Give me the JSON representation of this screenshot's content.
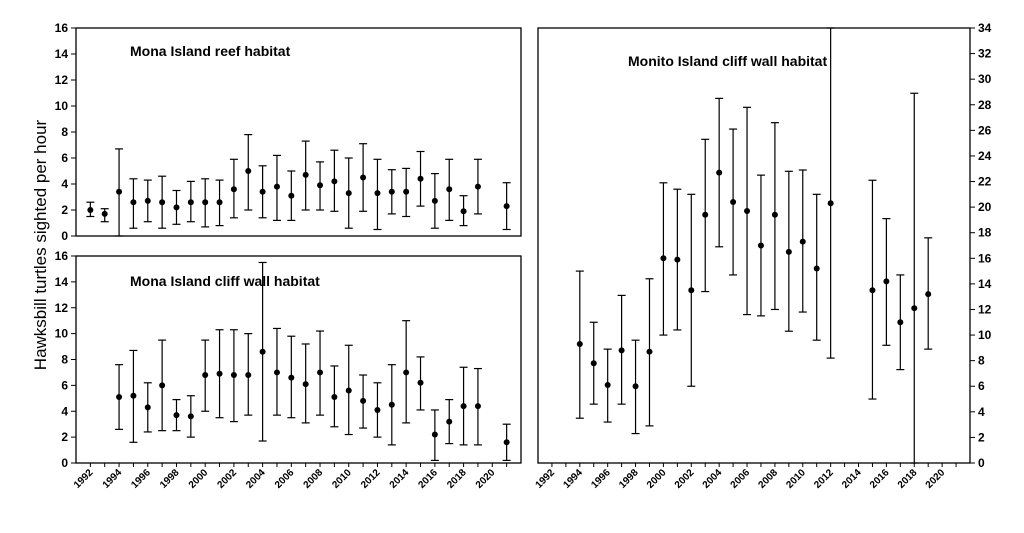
{
  "ylabel": "Hawksbill turtles sighted per hour",
  "chart_data": [
    {
      "type": "scatter",
      "title": "Mona Island  reef habitat",
      "xlim": [
        1991,
        2022
      ],
      "ylim": [
        0,
        16
      ],
      "yticks": [
        0,
        2,
        4,
        6,
        8,
        10,
        12,
        14,
        16
      ],
      "points": [
        {
          "x": 1992,
          "y": 2.0,
          "lo": 1.5,
          "hi": 2.6
        },
        {
          "x": 1993,
          "y": 1.7,
          "lo": 1.1,
          "hi": 2.1
        },
        {
          "x": 1994,
          "y": 3.4,
          "lo": 0.0,
          "hi": 6.7
        },
        {
          "x": 1995,
          "y": 2.6,
          "lo": 0.6,
          "hi": 4.4
        },
        {
          "x": 1996,
          "y": 2.7,
          "lo": 1.1,
          "hi": 4.3
        },
        {
          "x": 1997,
          "y": 2.6,
          "lo": 0.6,
          "hi": 4.6
        },
        {
          "x": 1998,
          "y": 2.2,
          "lo": 0.9,
          "hi": 3.5
        },
        {
          "x": 1999,
          "y": 2.6,
          "lo": 1.1,
          "hi": 4.2
        },
        {
          "x": 2000,
          "y": 2.6,
          "lo": 0.7,
          "hi": 4.4
        },
        {
          "x": 2001,
          "y": 2.6,
          "lo": 0.8,
          "hi": 4.3
        },
        {
          "x": 2002,
          "y": 3.6,
          "lo": 1.4,
          "hi": 5.9
        },
        {
          "x": 2003,
          "y": 5.0,
          "lo": 2.0,
          "hi": 7.8
        },
        {
          "x": 2004,
          "y": 3.4,
          "lo": 1.4,
          "hi": 5.4
        },
        {
          "x": 2005,
          "y": 3.8,
          "lo": 1.2,
          "hi": 6.2
        },
        {
          "x": 2006,
          "y": 3.1,
          "lo": 1.2,
          "hi": 5.0
        },
        {
          "x": 2007,
          "y": 4.7,
          "lo": 2.0,
          "hi": 7.3
        },
        {
          "x": 2008,
          "y": 3.9,
          "lo": 2.0,
          "hi": 5.7
        },
        {
          "x": 2009,
          "y": 4.2,
          "lo": 1.9,
          "hi": 6.6
        },
        {
          "x": 2010,
          "y": 3.3,
          "lo": 0.6,
          "hi": 6.0
        },
        {
          "x": 2011,
          "y": 4.5,
          "lo": 1.9,
          "hi": 7.1
        },
        {
          "x": 2012,
          "y": 3.3,
          "lo": 0.5,
          "hi": 5.9
        },
        {
          "x": 2013,
          "y": 3.4,
          "lo": 1.7,
          "hi": 5.1
        },
        {
          "x": 2014,
          "y": 3.4,
          "lo": 1.5,
          "hi": 5.2
        },
        {
          "x": 2015,
          "y": 4.4,
          "lo": 2.3,
          "hi": 6.5
        },
        {
          "x": 2016,
          "y": 2.7,
          "lo": 0.6,
          "hi": 4.8
        },
        {
          "x": 2017,
          "y": 3.6,
          "lo": 1.2,
          "hi": 5.9
        },
        {
          "x": 2018,
          "y": 1.9,
          "lo": 0.8,
          "hi": 3.1
        },
        {
          "x": 2019,
          "y": 3.8,
          "lo": 1.7,
          "hi": 5.9
        },
        {
          "x": 2021,
          "y": 2.3,
          "lo": 0.5,
          "hi": 4.1
        }
      ]
    },
    {
      "type": "scatter",
      "title": "Mona Island  cliff wall habitat",
      "xlim": [
        1991,
        2022
      ],
      "ylim": [
        0,
        16
      ],
      "yticks": [
        0,
        2,
        4,
        6,
        8,
        10,
        12,
        14,
        16
      ],
      "xticks": [
        1992,
        1994,
        1996,
        1998,
        2000,
        2002,
        2004,
        2006,
        2008,
        2010,
        2012,
        2014,
        2016,
        2018,
        2020
      ],
      "points": [
        {
          "x": 1994,
          "y": 5.1,
          "lo": 2.6,
          "hi": 7.6
        },
        {
          "x": 1995,
          "y": 5.2,
          "lo": 1.6,
          "hi": 8.7
        },
        {
          "x": 1996,
          "y": 4.3,
          "lo": 2.4,
          "hi": 6.2
        },
        {
          "x": 1997,
          "y": 6.0,
          "lo": 2.5,
          "hi": 9.5
        },
        {
          "x": 1998,
          "y": 3.7,
          "lo": 2.5,
          "hi": 4.9
        },
        {
          "x": 1999,
          "y": 3.6,
          "lo": 2.0,
          "hi": 5.2
        },
        {
          "x": 2000,
          "y": 6.8,
          "lo": 4.0,
          "hi": 9.5
        },
        {
          "x": 2001,
          "y": 6.9,
          "lo": 3.5,
          "hi": 10.3
        },
        {
          "x": 2002,
          "y": 6.8,
          "lo": 3.2,
          "hi": 10.3
        },
        {
          "x": 2003,
          "y": 6.8,
          "lo": 3.7,
          "hi": 10.0
        },
        {
          "x": 2004,
          "y": 8.6,
          "lo": 1.7,
          "hi": 15.5
        },
        {
          "x": 2005,
          "y": 7.0,
          "lo": 3.7,
          "hi": 10.4
        },
        {
          "x": 2006,
          "y": 6.6,
          "lo": 3.5,
          "hi": 9.8
        },
        {
          "x": 2007,
          "y": 6.1,
          "lo": 3.1,
          "hi": 9.2
        },
        {
          "x": 2008,
          "y": 7.0,
          "lo": 3.7,
          "hi": 10.2
        },
        {
          "x": 2009,
          "y": 5.1,
          "lo": 2.8,
          "hi": 7.5
        },
        {
          "x": 2010,
          "y": 5.6,
          "lo": 2.2,
          "hi": 9.1
        },
        {
          "x": 2011,
          "y": 4.8,
          "lo": 2.7,
          "hi": 6.8
        },
        {
          "x": 2012,
          "y": 4.1,
          "lo": 2.0,
          "hi": 6.2
        },
        {
          "x": 2013,
          "y": 4.5,
          "lo": 1.4,
          "hi": 7.6
        },
        {
          "x": 2014,
          "y": 7.0,
          "lo": 3.1,
          "hi": 11.0
        },
        {
          "x": 2015,
          "y": 6.2,
          "lo": 4.1,
          "hi": 8.2
        },
        {
          "x": 2016,
          "y": 2.2,
          "lo": 0.2,
          "hi": 4.1
        },
        {
          "x": 2017,
          "y": 3.2,
          "lo": 1.5,
          "hi": 4.9
        },
        {
          "x": 2018,
          "y": 4.4,
          "lo": 1.4,
          "hi": 7.4
        },
        {
          "x": 2019,
          "y": 4.4,
          "lo": 1.4,
          "hi": 7.3
        },
        {
          "x": 2021,
          "y": 1.6,
          "lo": 0.2,
          "hi": 3.0
        }
      ]
    },
    {
      "type": "scatter",
      "title": "Monito Island cliff wall habitat",
      "xlim": [
        1991,
        2022
      ],
      "ylim": [
        0,
        34
      ],
      "yticks": [
        0,
        2,
        4,
        6,
        8,
        10,
        12,
        14,
        16,
        18,
        20,
        22,
        24,
        26,
        28,
        30,
        32,
        34
      ],
      "xticks": [
        1992,
        1994,
        1996,
        1998,
        2000,
        2002,
        2004,
        2006,
        2008,
        2010,
        2012,
        2014,
        2016,
        2018,
        2020
      ],
      "points": [
        {
          "x": 1994,
          "y": 9.3,
          "lo": 3.5,
          "hi": 15.0
        },
        {
          "x": 1995,
          "y": 7.8,
          "lo": 4.6,
          "hi": 11.0
        },
        {
          "x": 1996,
          "y": 6.1,
          "lo": 3.2,
          "hi": 8.9
        },
        {
          "x": 1997,
          "y": 8.8,
          "lo": 4.6,
          "hi": 13.1
        },
        {
          "x": 1998,
          "y": 6.0,
          "lo": 2.3,
          "hi": 9.6
        },
        {
          "x": 1999,
          "y": 8.7,
          "lo": 2.9,
          "hi": 14.4
        },
        {
          "x": 2000,
          "y": 16.0,
          "lo": 10.0,
          "hi": 21.9
        },
        {
          "x": 2001,
          "y": 15.9,
          "lo": 10.4,
          "hi": 21.4
        },
        {
          "x": 2002,
          "y": 13.5,
          "lo": 6.0,
          "hi": 21.0
        },
        {
          "x": 2003,
          "y": 19.4,
          "lo": 13.4,
          "hi": 25.3
        },
        {
          "x": 2004,
          "y": 22.7,
          "lo": 16.9,
          "hi": 28.5
        },
        {
          "x": 2005,
          "y": 20.4,
          "lo": 14.7,
          "hi": 26.1
        },
        {
          "x": 2006,
          "y": 19.7,
          "lo": 11.6,
          "hi": 27.8
        },
        {
          "x": 2007,
          "y": 17.0,
          "lo": 11.5,
          "hi": 22.5
        },
        {
          "x": 2008,
          "y": 19.4,
          "lo": 12.0,
          "hi": 26.6
        },
        {
          "x": 2009,
          "y": 16.5,
          "lo": 10.3,
          "hi": 22.8
        },
        {
          "x": 2010,
          "y": 17.3,
          "lo": 11.8,
          "hi": 22.9
        },
        {
          "x": 2011,
          "y": 15.2,
          "lo": 9.6,
          "hi": 21.0
        },
        {
          "x": 2012,
          "y": 20.3,
          "lo": 8.2,
          "hi": 34.0
        },
        {
          "x": 2015,
          "y": 13.5,
          "lo": 5.0,
          "hi": 22.1
        },
        {
          "x": 2016,
          "y": 14.2,
          "lo": 9.2,
          "hi": 19.1
        },
        {
          "x": 2017,
          "y": 11.0,
          "lo": 7.3,
          "hi": 14.7
        },
        {
          "x": 2018,
          "y": 12.1,
          "lo": 0.0,
          "hi": 28.9
        },
        {
          "x": 2019,
          "y": 13.2,
          "lo": 8.9,
          "hi": 17.6
        }
      ]
    }
  ]
}
